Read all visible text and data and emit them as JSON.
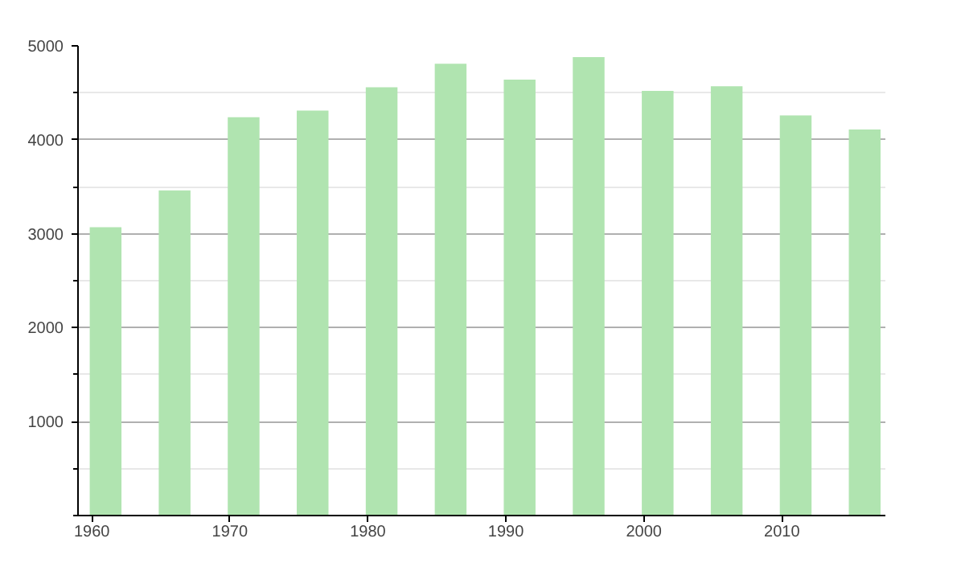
{
  "chart_data": {
    "type": "bar",
    "x": [
      1961,
      1966,
      1971,
      1976,
      1981,
      1986,
      1991,
      1996,
      2001,
      2006,
      2011,
      2016
    ],
    "values": [
      3070,
      3460,
      4240,
      4310,
      4560,
      4810,
      4640,
      4880,
      4520,
      4570,
      4260,
      4110
    ],
    "color": "#b0e4b0",
    "xlim": [
      1959,
      2017.5
    ],
    "xticks": [
      1960,
      1970,
      1980,
      1990,
      2000,
      2010
    ],
    "ylim": [
      0,
      5000
    ],
    "yticks": [
      {
        "value": 0,
        "label": null
      },
      {
        "value": 500,
        "label": null
      },
      1000,
      {
        "value": 1500,
        "label": null
      },
      2000,
      {
        "value": 2500,
        "label": null
      },
      3000,
      {
        "value": 3500,
        "label": null
      },
      4000,
      {
        "value": 4500,
        "label": null
      },
      5000
    ],
    "grid": "y"
  }
}
